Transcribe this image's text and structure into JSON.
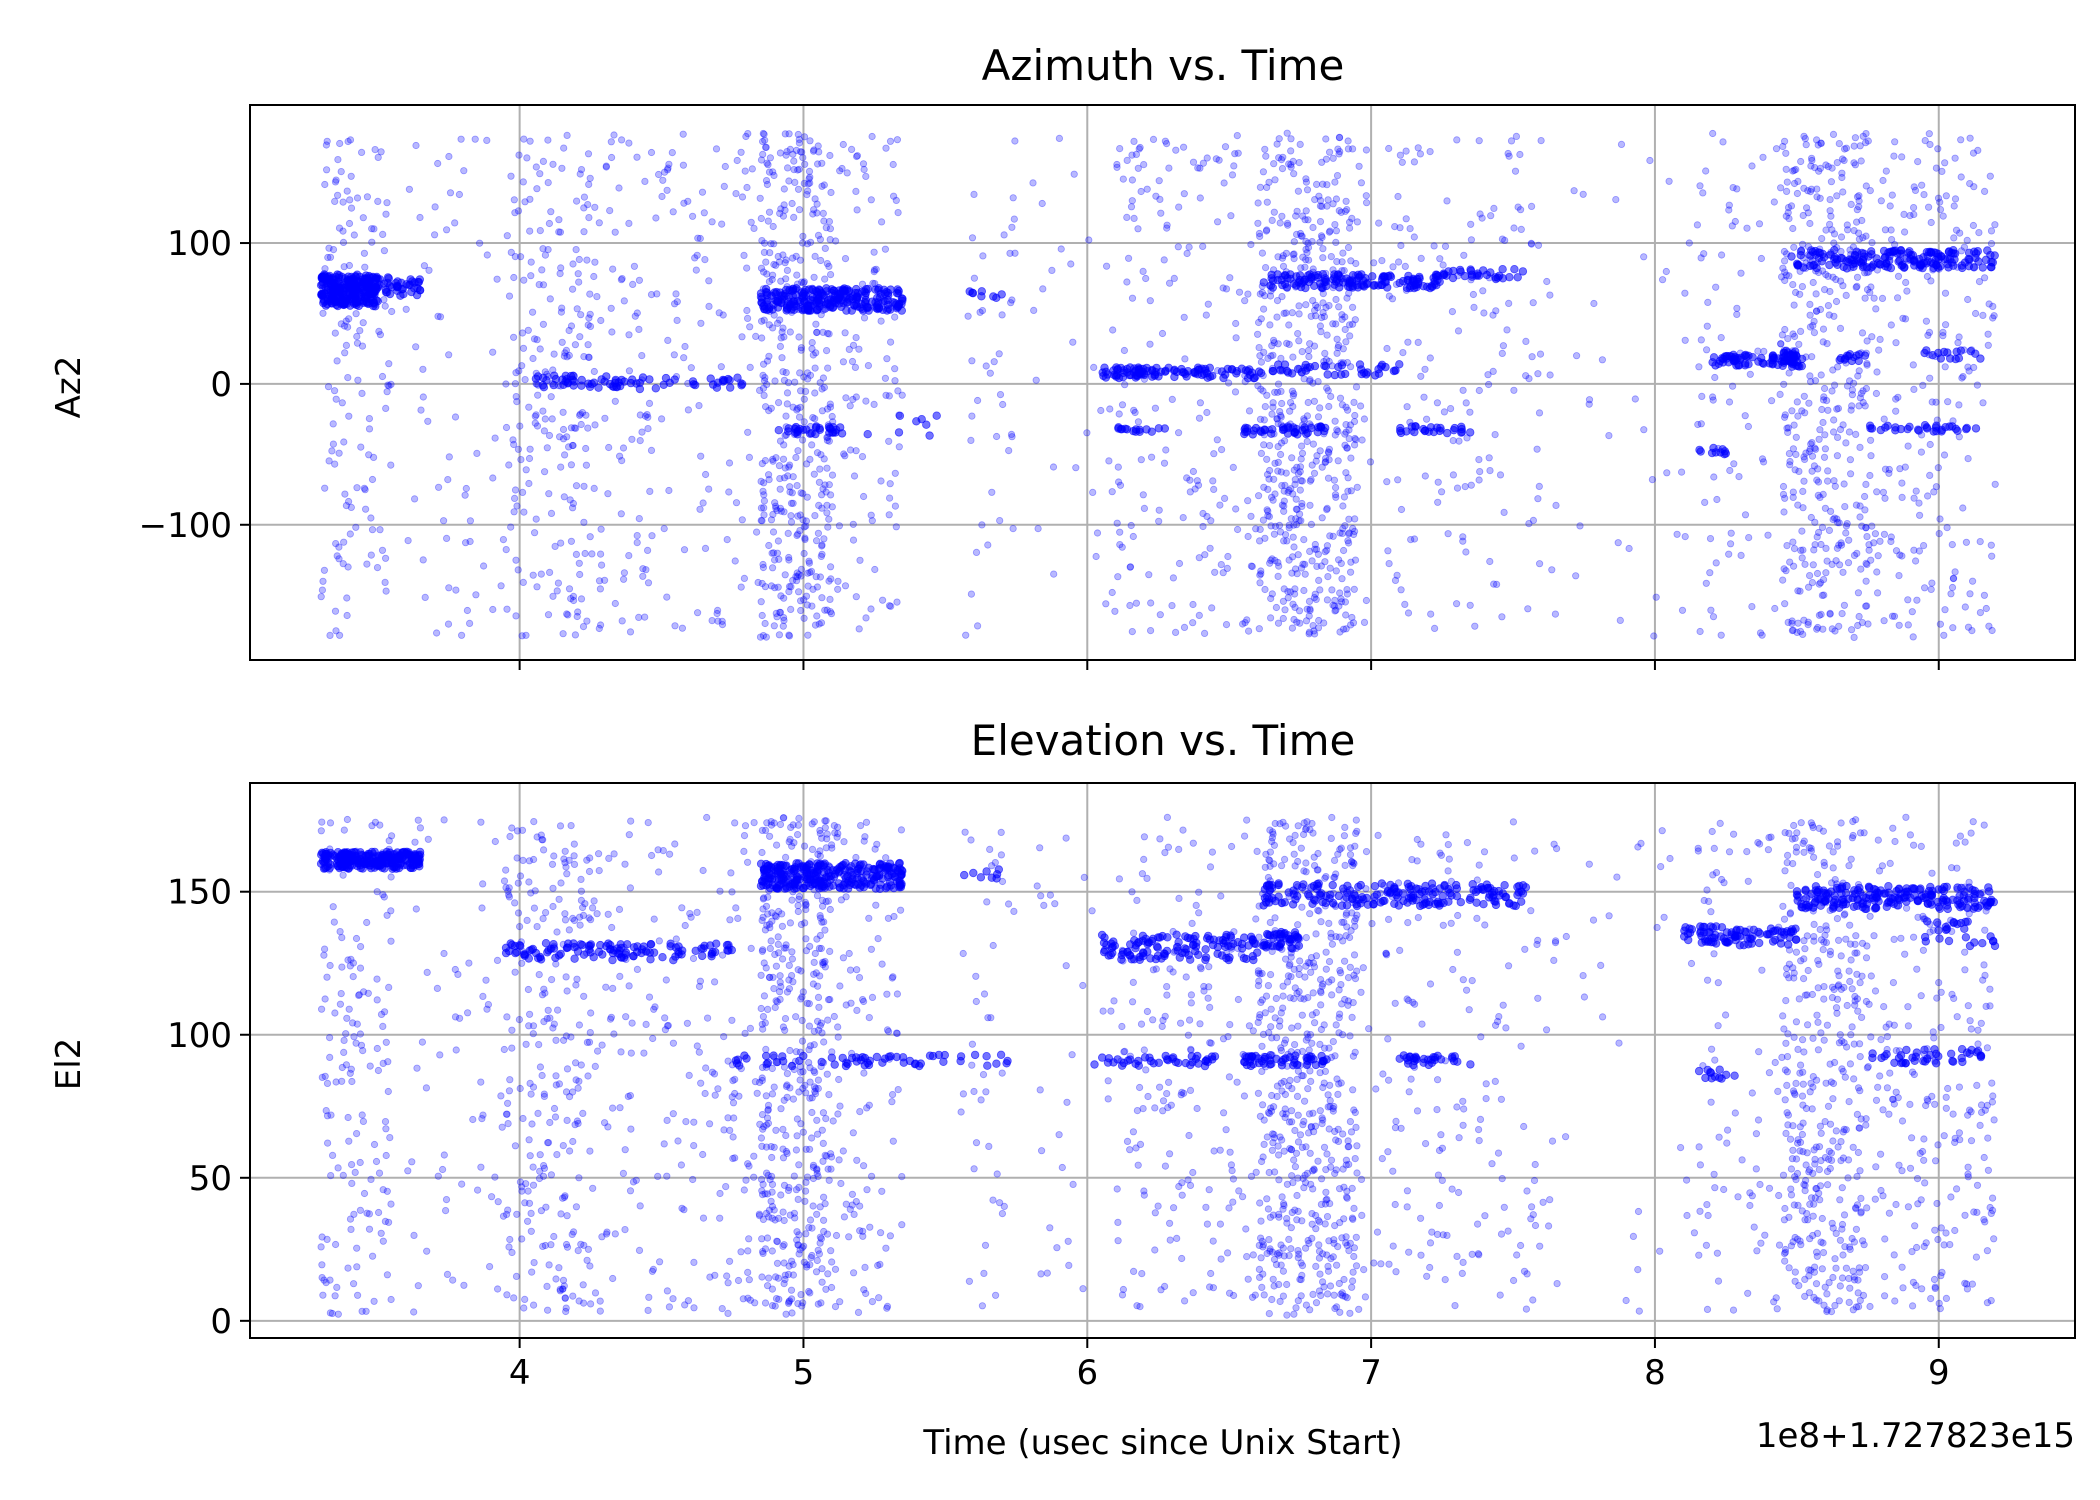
{
  "figure": {
    "x_offset_label": "1e8+1.727823e15",
    "marker_color": "#0000ff"
  },
  "chart_data": [
    {
      "type": "scatter",
      "title": "Azimuth vs. Time",
      "xlabel": "",
      "ylabel": "Az2",
      "xlim": [
        3.05,
        9.48
      ],
      "ylim": [
        -196,
        198
      ],
      "xticks": [
        4,
        5,
        6,
        7,
        8,
        9
      ],
      "xtick_labels_visible": false,
      "yticks": [
        -100,
        0,
        100
      ],
      "ytick_labels": [
        "−100",
        "0",
        "100"
      ],
      "grid": true,
      "clusters": [
        {
          "x": [
            3.3,
            3.5
          ],
          "y": [
            55,
            78
          ],
          "n": 260
        },
        {
          "x": [
            3.5,
            3.65
          ],
          "y": [
            62,
            76
          ],
          "n": 40
        },
        {
          "x": [
            4.05,
            4.8
          ],
          "y": [
            -4,
            6
          ],
          "n": 70
        },
        {
          "x": [
            4.85,
            5.35
          ],
          "y": [
            52,
            68
          ],
          "n": 240
        },
        {
          "x": [
            5.55,
            5.7
          ],
          "y": [
            61,
            66
          ],
          "n": 8
        },
        {
          "x": [
            4.9,
            5.15
          ],
          "y": [
            -36,
            -30
          ],
          "n": 30
        },
        {
          "x": [
            5.2,
            5.5
          ],
          "y": [
            -40,
            -22
          ],
          "n": 8
        },
        {
          "x": [
            6.05,
            6.6
          ],
          "y": [
            4,
            12
          ],
          "n": 100
        },
        {
          "x": [
            6.6,
            7.1
          ],
          "y": [
            6,
            14
          ],
          "n": 40
        },
        {
          "x": [
            6.62,
            7.25
          ],
          "y": [
            68,
            78
          ],
          "n": 140
        },
        {
          "x": [
            7.25,
            7.55
          ],
          "y": [
            74,
            82
          ],
          "n": 30
        },
        {
          "x": [
            6.1,
            6.3
          ],
          "y": [
            -35,
            -30
          ],
          "n": 15
        },
        {
          "x": [
            6.55,
            6.85
          ],
          "y": [
            -36,
            -30
          ],
          "n": 40
        },
        {
          "x": [
            7.1,
            7.35
          ],
          "y": [
            -35,
            -30
          ],
          "n": 25
        },
        {
          "x": [
            8.2,
            8.5
          ],
          "y": [
            13,
            21
          ],
          "n": 60
        },
        {
          "x": [
            8.45,
            8.52
          ],
          "y": [
            12,
            24
          ],
          "n": 30
        },
        {
          "x": [
            8.65,
            8.75
          ],
          "y": [
            16,
            22
          ],
          "n": 12
        },
        {
          "x": [
            8.95,
            9.15
          ],
          "y": [
            17,
            24
          ],
          "n": 15
        },
        {
          "x": [
            8.48,
            9.2
          ],
          "y": [
            82,
            95
          ],
          "n": 170
        },
        {
          "x": [
            8.75,
            9.15
          ],
          "y": [
            -34,
            -29
          ],
          "n": 30
        },
        {
          "x": [
            8.15,
            8.25
          ],
          "y": [
            -50,
            -45
          ],
          "n": 10
        }
      ],
      "scatter_bands": [
        {
          "x": [
            3.3,
            3.55
          ],
          "y": [
            -180,
            178
          ],
          "n": 140
        },
        {
          "x": [
            3.6,
            3.95
          ],
          "y": [
            -180,
            178
          ],
          "n": 60
        },
        {
          "x": [
            3.95,
            4.25
          ],
          "y": [
            -180,
            178
          ],
          "n": 220
        },
        {
          "x": [
            4.25,
            4.85
          ],
          "y": [
            -180,
            178
          ],
          "n": 190
        },
        {
          "x": [
            4.85,
            5.1
          ],
          "y": [
            -180,
            178
          ],
          "n": 420
        },
        {
          "x": [
            5.1,
            5.35
          ],
          "y": [
            -180,
            178
          ],
          "n": 100
        },
        {
          "x": [
            5.55,
            5.75
          ],
          "y": [
            -180,
            178
          ],
          "n": 40
        },
        {
          "x": [
            5.8,
            6.1
          ],
          "y": [
            -180,
            178
          ],
          "n": 30
        },
        {
          "x": [
            6.1,
            6.6
          ],
          "y": [
            -180,
            178
          ],
          "n": 180
        },
        {
          "x": [
            6.6,
            6.95
          ],
          "y": [
            -180,
            178
          ],
          "n": 560
        },
        {
          "x": [
            6.95,
            7.6
          ],
          "y": [
            -180,
            178
          ],
          "n": 170
        },
        {
          "x": [
            7.6,
            8.15
          ],
          "y": [
            -180,
            178
          ],
          "n": 40
        },
        {
          "x": [
            8.15,
            8.45
          ],
          "y": [
            -180,
            178
          ],
          "n": 80
        },
        {
          "x": [
            8.45,
            8.75
          ],
          "y": [
            -180,
            178
          ],
          "n": 400
        },
        {
          "x": [
            8.75,
            9.2
          ],
          "y": [
            -180,
            178
          ],
          "n": 230
        }
      ]
    },
    {
      "type": "scatter",
      "title": "Elevation vs. Time",
      "xlabel": "Time (usec since Unix Start)",
      "ylabel": "El2",
      "xlim": [
        3.05,
        9.48
      ],
      "ylim": [
        -6,
        188
      ],
      "xticks": [
        4,
        5,
        6,
        7,
        8,
        9
      ],
      "xtick_labels": [
        "4",
        "5",
        "6",
        "7",
        "8",
        "9"
      ],
      "yticks": [
        0,
        50,
        100,
        150
      ],
      "ytick_labels": [
        "0",
        "50",
        "100",
        "150"
      ],
      "grid": true,
      "clusters": [
        {
          "x": [
            3.3,
            3.65
          ],
          "y": [
            158,
            164
          ],
          "n": 240
        },
        {
          "x": [
            3.95,
            4.75
          ],
          "y": [
            126,
            132
          ],
          "n": 110
        },
        {
          "x": [
            4.85,
            5.35
          ],
          "y": [
            151,
            160
          ],
          "n": 280
        },
        {
          "x": [
            5.55,
            5.7
          ],
          "y": [
            154,
            158
          ],
          "n": 8
        },
        {
          "x": [
            4.75,
            5.75
          ],
          "y": [
            89,
            93
          ],
          "n": 60
        },
        {
          "x": [
            6.05,
            6.6
          ],
          "y": [
            126,
            135
          ],
          "n": 120
        },
        {
          "x": [
            6.62,
            6.75
          ],
          "y": [
            130,
            136
          ],
          "n": 40
        },
        {
          "x": [
            6.62,
            7.55
          ],
          "y": [
            145,
            153
          ],
          "n": 190
        },
        {
          "x": [
            6.0,
            6.45
          ],
          "y": [
            89,
            93
          ],
          "n": 40
        },
        {
          "x": [
            6.55,
            6.85
          ],
          "y": [
            89,
            93
          ],
          "n": 50
        },
        {
          "x": [
            7.1,
            7.35
          ],
          "y": [
            89,
            93
          ],
          "n": 30
        },
        {
          "x": [
            8.1,
            8.5
          ],
          "y": [
            131,
            138
          ],
          "n": 90
        },
        {
          "x": [
            8.5,
            9.2
          ],
          "y": [
            144,
            152
          ],
          "n": 200
        },
        {
          "x": [
            8.95,
            9.2
          ],
          "y": [
            131,
            140
          ],
          "n": 25
        },
        {
          "x": [
            8.75,
            9.15
          ],
          "y": [
            90,
            95
          ],
          "n": 40
        },
        {
          "x": [
            8.15,
            8.3
          ],
          "y": [
            84,
            88
          ],
          "n": 12
        }
      ],
      "scatter_bands": [
        {
          "x": [
            3.3,
            3.55
          ],
          "y": [
            2,
            176
          ],
          "n": 160
        },
        {
          "x": [
            3.6,
            3.95
          ],
          "y": [
            2,
            176
          ],
          "n": 60
        },
        {
          "x": [
            3.95,
            4.25
          ],
          "y": [
            2,
            176
          ],
          "n": 240
        },
        {
          "x": [
            4.25,
            4.85
          ],
          "y": [
            2,
            176
          ],
          "n": 200
        },
        {
          "x": [
            4.85,
            5.1
          ],
          "y": [
            2,
            176
          ],
          "n": 440
        },
        {
          "x": [
            5.1,
            5.35
          ],
          "y": [
            2,
            176
          ],
          "n": 110
        },
        {
          "x": [
            5.55,
            5.75
          ],
          "y": [
            2,
            176
          ],
          "n": 40
        },
        {
          "x": [
            5.8,
            6.1
          ],
          "y": [
            2,
            176
          ],
          "n": 30
        },
        {
          "x": [
            6.1,
            6.6
          ],
          "y": [
            2,
            176
          ],
          "n": 180
        },
        {
          "x": [
            6.6,
            6.95
          ],
          "y": [
            2,
            176
          ],
          "n": 560
        },
        {
          "x": [
            6.95,
            7.6
          ],
          "y": [
            2,
            176
          ],
          "n": 170
        },
        {
          "x": [
            7.6,
            8.15
          ],
          "y": [
            2,
            176
          ],
          "n": 40
        },
        {
          "x": [
            8.15,
            8.45
          ],
          "y": [
            2,
            176
          ],
          "n": 80
        },
        {
          "x": [
            8.45,
            8.75
          ],
          "y": [
            2,
            176
          ],
          "n": 400
        },
        {
          "x": [
            8.75,
            9.2
          ],
          "y": [
            2,
            176
          ],
          "n": 230
        }
      ]
    }
  ]
}
